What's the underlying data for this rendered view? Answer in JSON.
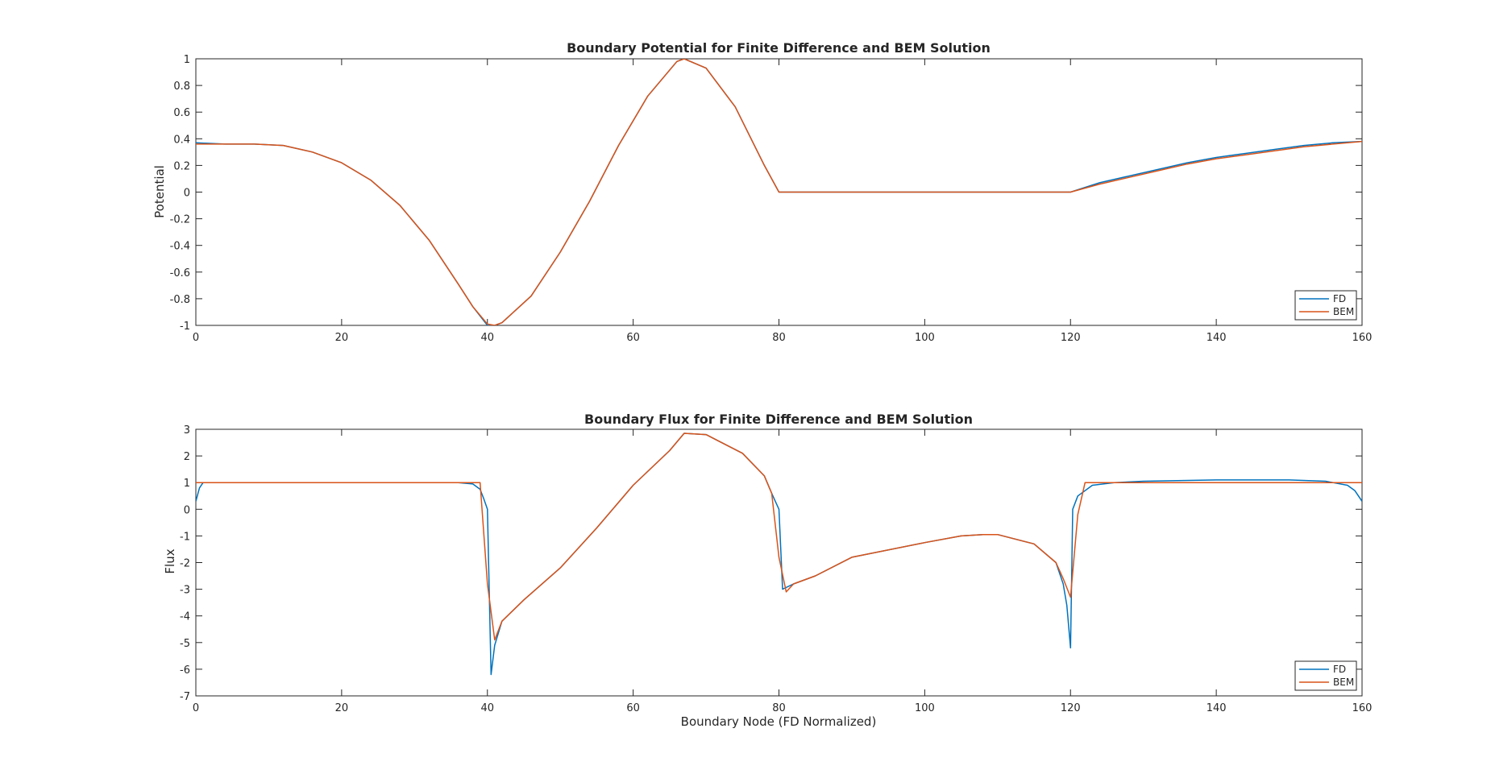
{
  "colors": {
    "fd": "#0072BD",
    "bem": "#D95319",
    "axes": "#262626"
  },
  "chart_data": [
    {
      "type": "line",
      "title": "Boundary Potential for Finite Difference and BEM Solution",
      "xlabel": "",
      "ylabel": "Potential",
      "xlim": [
        0,
        160
      ],
      "ylim": [
        -1,
        1
      ],
      "xticks": [
        0,
        20,
        40,
        60,
        80,
        100,
        120,
        140,
        160
      ],
      "xtick_labels": [
        "0",
        "20",
        "40",
        "60",
        "80",
        "100",
        "120",
        "140",
        "160"
      ],
      "yticks": [
        -1,
        -0.8,
        -0.6,
        -0.4,
        -0.2,
        0,
        0.2,
        0.4,
        0.6,
        0.8,
        1
      ],
      "ytick_labels": [
        "-1",
        "-0.8",
        "-0.6",
        "-0.4",
        "-0.2",
        "0",
        "0.2",
        "0.4",
        "0.6",
        "0.8",
        "1"
      ],
      "grid": false,
      "legend": "bottom-right",
      "series": [
        {
          "name": "FD",
          "x": [
            0,
            4,
            8,
            12,
            16,
            20,
            24,
            28,
            32,
            36,
            38,
            40,
            41,
            42,
            46,
            50,
            54,
            58,
            62,
            66,
            67,
            70,
            74,
            78,
            80,
            90,
            100,
            110,
            120,
            124,
            128,
            132,
            136,
            140,
            144,
            148,
            152,
            156,
            160
          ],
          "y": [
            0.37,
            0.36,
            0.36,
            0.35,
            0.3,
            0.22,
            0.09,
            -0.1,
            -0.36,
            -0.69,
            -0.86,
            -1.0,
            -1.0,
            -0.98,
            -0.78,
            -0.45,
            -0.07,
            0.35,
            0.72,
            0.98,
            1.0,
            0.93,
            0.64,
            0.2,
            0.0,
            0.0,
            0.0,
            0.0,
            0.0,
            0.07,
            0.12,
            0.17,
            0.22,
            0.26,
            0.29,
            0.32,
            0.35,
            0.37,
            0.38
          ]
        },
        {
          "name": "BEM",
          "x": [
            0,
            4,
            8,
            12,
            16,
            20,
            24,
            28,
            32,
            36,
            38,
            40,
            41,
            42,
            46,
            50,
            54,
            58,
            62,
            66,
            67,
            70,
            74,
            78,
            80,
            90,
            100,
            110,
            120,
            124,
            128,
            132,
            136,
            140,
            144,
            148,
            152,
            156,
            160
          ],
          "y": [
            0.36,
            0.36,
            0.36,
            0.35,
            0.3,
            0.22,
            0.09,
            -0.1,
            -0.36,
            -0.69,
            -0.86,
            -0.99,
            -1.0,
            -0.98,
            -0.78,
            -0.45,
            -0.07,
            0.35,
            0.72,
            0.98,
            1.0,
            0.93,
            0.64,
            0.2,
            0.0,
            0.0,
            0.0,
            0.0,
            0.0,
            0.06,
            0.11,
            0.16,
            0.21,
            0.25,
            0.28,
            0.31,
            0.34,
            0.36,
            0.38
          ]
        }
      ]
    },
    {
      "type": "line",
      "title": "Boundary Flux for Finite Difference and BEM Solution",
      "xlabel": "Boundary Node (FD Normalized)",
      "ylabel": "Flux",
      "xlim": [
        0,
        160
      ],
      "ylim": [
        -7,
        3
      ],
      "xticks": [
        0,
        20,
        40,
        60,
        80,
        100,
        120,
        140,
        160
      ],
      "xtick_labels": [
        "0",
        "20",
        "40",
        "60",
        "80",
        "100",
        "120",
        "140",
        "160"
      ],
      "yticks": [
        -7,
        -6,
        -5,
        -4,
        -3,
        -2,
        -1,
        0,
        1,
        2,
        3
      ],
      "ytick_labels": [
        "-7",
        "-6",
        "-5",
        "-4",
        "-3",
        "-2",
        "-1",
        "0",
        "1",
        "2",
        "3"
      ],
      "grid": false,
      "legend": "bottom-right",
      "series": [
        {
          "name": "FD",
          "x": [
            0,
            0.5,
            1,
            5,
            10,
            20,
            30,
            36,
            38,
            39,
            39.5,
            40,
            40.5,
            41,
            42,
            45,
            50,
            55,
            60,
            65,
            67,
            70,
            75,
            78,
            79,
            79.5,
            80,
            80.5,
            82,
            85,
            90,
            100,
            105,
            108,
            110,
            115,
            118,
            119,
            119.5,
            120,
            120.3,
            121,
            123,
            126,
            130,
            140,
            150,
            155,
            158,
            159,
            160
          ],
          "y": [
            0.3,
            0.8,
            1.0,
            1.0,
            1.0,
            1.0,
            1.0,
            1.0,
            0.95,
            0.75,
            0.4,
            0.0,
            -6.2,
            -5.1,
            -4.2,
            -3.4,
            -2.2,
            -0.7,
            0.9,
            2.2,
            2.85,
            2.8,
            2.1,
            1.25,
            0.6,
            0.3,
            0.0,
            -3.0,
            -2.8,
            -2.5,
            -1.8,
            -1.25,
            -1.0,
            -0.95,
            -0.95,
            -1.3,
            -2.0,
            -2.8,
            -3.6,
            -5.2,
            0.0,
            0.5,
            0.9,
            1.0,
            1.05,
            1.1,
            1.1,
            1.05,
            0.9,
            0.7,
            0.3
          ]
        },
        {
          "name": "BEM",
          "x": [
            0,
            1,
            5,
            10,
            20,
            30,
            36,
            38,
            39,
            40,
            41,
            42,
            45,
            50,
            55,
            60,
            65,
            67,
            70,
            75,
            78,
            79,
            80,
            81,
            82,
            85,
            90,
            100,
            105,
            108,
            110,
            115,
            118,
            119,
            120,
            121,
            122,
            126,
            130,
            140,
            150,
            155,
            158,
            160
          ],
          "y": [
            1.0,
            1.0,
            1.0,
            1.0,
            1.0,
            1.0,
            1.0,
            1.0,
            1.0,
            -2.8,
            -4.9,
            -4.2,
            -3.4,
            -2.2,
            -0.7,
            0.9,
            2.2,
            2.85,
            2.8,
            2.1,
            1.25,
            0.6,
            -1.8,
            -3.1,
            -2.8,
            -2.5,
            -1.8,
            -1.25,
            -1.0,
            -0.95,
            -0.95,
            -1.3,
            -2.0,
            -2.6,
            -3.3,
            -0.2,
            1.0,
            1.0,
            1.0,
            1.0,
            1.0,
            1.0,
            1.0,
            1.0
          ]
        }
      ]
    }
  ]
}
